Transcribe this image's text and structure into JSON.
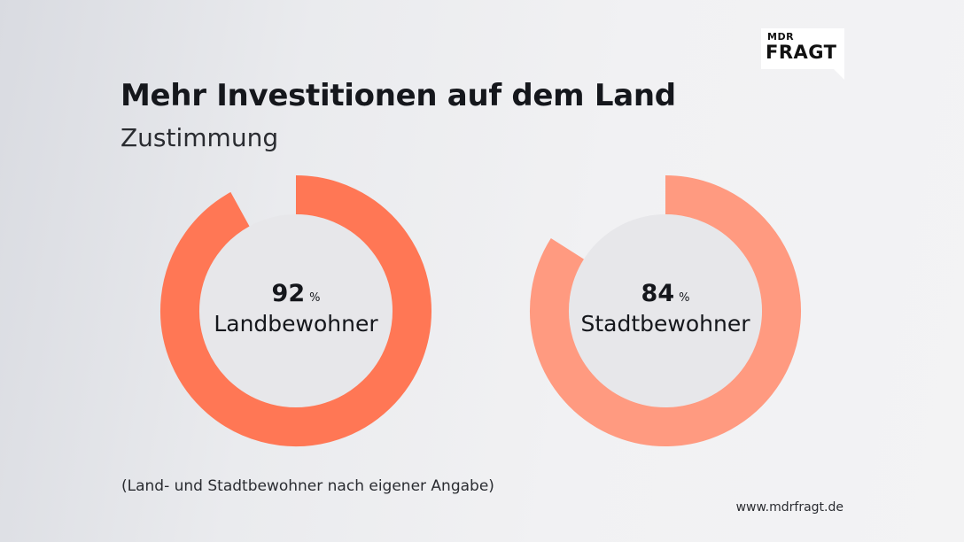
{
  "logo": {
    "top": "MDR",
    "main": "FRAGT"
  },
  "title": "Mehr Investitionen auf dem Land",
  "subtitle": "Zustimmung",
  "chart_data": {
    "type": "pie",
    "style": "donut",
    "title": "Mehr Investitionen auf dem Land",
    "subtitle": "Zustimmung",
    "series": [
      {
        "name": "Landbewohner",
        "value": 92,
        "unit": "%",
        "color": "#ff7755"
      },
      {
        "name": "Stadtbewohner",
        "value": 84,
        "unit": "%",
        "color": "#ff9a80"
      }
    ],
    "max": 100
  },
  "footnote": "(Land- und Stadtbewohner nach eigener Angabe)",
  "source": "www.mdrfragt.de"
}
